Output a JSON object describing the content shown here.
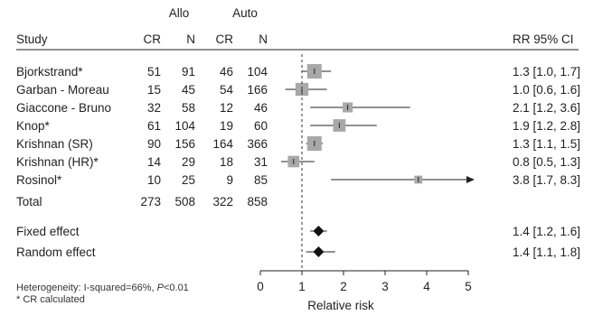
{
  "chart_data": {
    "type": "forest",
    "headers": {
      "group_allo": "Allo",
      "group_auto": "Auto",
      "study": "Study",
      "cr": "CR",
      "n": "N",
      "rr_ci": "RR 95% CI"
    },
    "studies": [
      {
        "name": "Bjorkstrand*",
        "allo_cr": "51",
        "allo_n": "91",
        "auto_cr": "46",
        "auto_n": "104",
        "rr": 1.3,
        "lo": 1.0,
        "hi": 1.7,
        "weight": 1.0,
        "label": "1.3 [1.0, 1.7]"
      },
      {
        "name": "Garban - Moreau",
        "allo_cr": "15",
        "allo_n": "45",
        "auto_cr": "54",
        "auto_n": "166",
        "rr": 1.0,
        "lo": 0.6,
        "hi": 1.6,
        "weight": 0.85,
        "label": "1.0 [0.6, 1.6]"
      },
      {
        "name": "Giaccone - Bruno",
        "allo_cr": "32",
        "allo_n": "58",
        "auto_cr": "12",
        "auto_n": "46",
        "rr": 2.1,
        "lo": 1.2,
        "hi": 3.6,
        "weight": 0.55,
        "label": "2.1 [1.2, 3.6]"
      },
      {
        "name": "Knop*",
        "allo_cr": "61",
        "allo_n": "104",
        "auto_cr": "19",
        "auto_n": "60",
        "rr": 1.9,
        "lo": 1.2,
        "hi": 2.8,
        "weight": 0.8,
        "label": "1.9 [1.2, 2.8]"
      },
      {
        "name": "Krishnan (SR)",
        "allo_cr": "90",
        "allo_n": "156",
        "auto_cr": "164",
        "auto_n": "366",
        "rr": 1.3,
        "lo": 1.1,
        "hi": 1.5,
        "weight": 1.0,
        "label": "1.3 [1.1, 1.5]"
      },
      {
        "name": "Krishnan (HR)*",
        "allo_cr": "14",
        "allo_n": "29",
        "auto_cr": "18",
        "auto_n": "31",
        "rr": 0.8,
        "lo": 0.5,
        "hi": 1.3,
        "weight": 0.7,
        "label": "0.8 [0.5, 1.3]"
      },
      {
        "name": "Rosinol*",
        "allo_cr": "10",
        "allo_n": "25",
        "auto_cr": "9",
        "auto_n": "85",
        "rr": 3.8,
        "lo": 1.7,
        "hi": 8.3,
        "weight": 0.35,
        "label": "3.8 [1.7, 8.3]"
      }
    ],
    "total": {
      "name": "Total",
      "allo_cr": "273",
      "allo_n": "508",
      "auto_cr": "322",
      "auto_n": "858"
    },
    "summaries": [
      {
        "name": "Fixed effect",
        "rr": 1.4,
        "lo": 1.2,
        "hi": 1.6,
        "label": "1.4 [1.2, 1.6]"
      },
      {
        "name": "Random effect",
        "rr": 1.4,
        "lo": 1.1,
        "hi": 1.8,
        "label": "1.4 [1.1, 1.8]"
      }
    ],
    "xlabel": "Relative risk",
    "xlim": [
      0,
      5
    ],
    "xticks": [
      "0",
      "1",
      "2",
      "3",
      "4",
      "5"
    ],
    "reference_line": 1,
    "footnotes": {
      "heterogeneity_prefix": "Heterogeneity: I-squared=66%, ",
      "p_symbol": "P",
      "p_value": "<0.01",
      "cr_note": "* CR calculated"
    },
    "colors": {
      "box": "#a8a8a8",
      "diamond": "#111111",
      "line": "#222222",
      "text": "#222222"
    }
  }
}
